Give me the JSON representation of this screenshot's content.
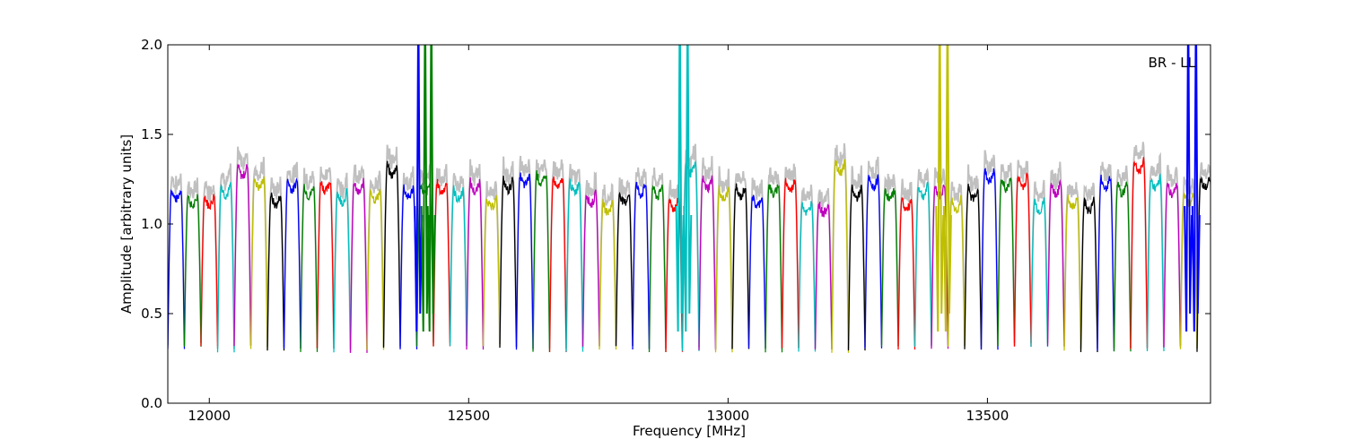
{
  "chart_data": {
    "type": "line",
    "title": "",
    "xlabel": "Frequency [MHz]",
    "ylabel": "Amplitude [arbitrary units]",
    "xlim": [
      11920,
      13930
    ],
    "ylim": [
      0.0,
      2.0
    ],
    "xticks": [
      12000,
      12500,
      13000,
      13500
    ],
    "yticks": [
      0.0,
      0.5,
      1.0,
      1.5,
      2.0
    ],
    "ytick_labels": [
      "0.0",
      "0.5",
      "1.0",
      "1.5",
      "2.0"
    ],
    "grid": false,
    "annotation": "BR - LL",
    "background_series_color": "#c0c0c0",
    "channel_colors": [
      "#0000ff",
      "#008000",
      "#ff0000",
      "#00bfbf",
      "#bf00bf",
      "#bfbf00",
      "#000000"
    ],
    "channels": {
      "start_mhz": 11920,
      "width_mhz": 32,
      "count": 63,
      "typical_peak": 1.2,
      "typical_floor": 0.28
    },
    "spikes": [
      {
        "x": 12403,
        "color": "#0000ff"
      },
      {
        "x": 12416,
        "color": "#008000"
      },
      {
        "x": 12428,
        "color": "#008000"
      },
      {
        "x": 12907,
        "color": "#00bfbf"
      },
      {
        "x": 12922,
        "color": "#00bfbf"
      },
      {
        "x": 13408,
        "color": "#bfbf00"
      },
      {
        "x": 13423,
        "color": "#bfbf00"
      },
      {
        "x": 13887,
        "color": "#0000ff"
      },
      {
        "x": 13902,
        "color": "#0000ff"
      }
    ]
  }
}
